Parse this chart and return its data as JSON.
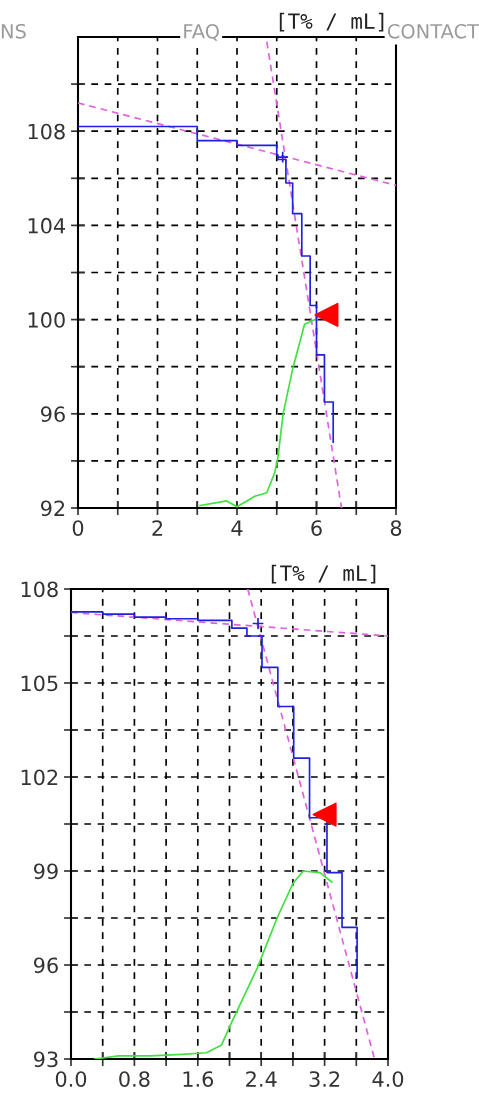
{
  "chart_data": [
    {
      "type": "line",
      "ylabel": "[T% / mL]",
      "annotations": [
        "NS",
        "FAQ",
        "CONTACT"
      ],
      "xlim": [
        0,
        8
      ],
      "ylim": [
        92,
        112
      ],
      "xticks": [
        0,
        {
          "value": 1,
          "label": null
        },
        2,
        {
          "value": 3,
          "label": null
        },
        4,
        {
          "value": 5,
          "label": null
        },
        6,
        {
          "value": 7,
          "label": null
        },
        8
      ],
      "yticks": [
        92,
        {
          "value": 94,
          "label": null
        },
        96,
        {
          "value": 98,
          "label": null
        },
        100,
        {
          "value": 102,
          "label": null
        },
        104,
        {
          "value": 106,
          "label": null
        },
        108,
        {
          "value": 110,
          "label": null
        }
      ],
      "grid": true,
      "series": [
        {
          "type": "line",
          "line_style": "dashed",
          "color": "#e060e0",
          "x": [
            0,
            8
          ],
          "values": [
            109.2,
            105.7
          ]
        },
        {
          "type": "line",
          "line_style": "dashed",
          "color": "#e060e0",
          "x": [
            4.75,
            6.63
          ],
          "values": [
            111.8,
            92
          ]
        },
        {
          "type": "line",
          "line_style": "solid",
          "color": "#40e040",
          "x": [
            3.07,
            3.74,
            4.0,
            4.45,
            4.75,
            4.95,
            5.03,
            5.16,
            5.4,
            5.7,
            5.96
          ],
          "values": [
            92.1,
            92.3,
            92.05,
            92.5,
            92.65,
            93.5,
            94.15,
            96,
            97.9,
            99.8,
            100
          ]
        },
        {
          "type": "step",
          "line_style": "solid",
          "color": "#2020e0",
          "x": [
            0,
            3,
            4,
            5,
            5.03,
            5.23,
            5.4,
            5.63,
            5.84,
            6.0,
            6.2,
            6.42
          ],
          "values": [
            108.2,
            107.6,
            107.4,
            107.0,
            106.8,
            105.8,
            104.5,
            102.7,
            100.6,
            98.5,
            96.5,
            94.8
          ]
        },
        {
          "type": "scatter",
          "marker": "cross",
          "color": "#2020e0",
          "x": [
            5.15
          ],
          "values": [
            106.9
          ]
        },
        {
          "type": "scatter",
          "marker": "triangle",
          "color": "#ff0000",
          "x": [
            6.25
          ],
          "values": [
            100.2
          ]
        }
      ]
    },
    {
      "type": "line",
      "ylabel": "[T% / mL]",
      "xlim": [
        0,
        4.0
      ],
      "ylim": [
        93,
        108
      ],
      "xticks": [
        {
          "value": 0,
          "label": "0.0"
        },
        {
          "value": 0.4,
          "label": null
        },
        {
          "value": 0.8,
          "label": "0.8"
        },
        {
          "value": 1.2,
          "label": null
        },
        {
          "value": 1.6,
          "label": "1.6"
        },
        {
          "value": 2.0,
          "label": null
        },
        {
          "value": 2.4,
          "label": "2.4"
        },
        {
          "value": 2.8,
          "label": null
        },
        {
          "value": 3.2,
          "label": "3.2"
        },
        {
          "value": 3.6,
          "label": null
        },
        {
          "value": 4.0,
          "label": "4.0"
        }
      ],
      "yticks": [
        93,
        {
          "value": 94.5,
          "label": null
        },
        96,
        {
          "value": 97.5,
          "label": null
        },
        99,
        {
          "value": 100.5,
          "label": null
        },
        102,
        {
          "value": 103.5,
          "label": null
        },
        105,
        {
          "value": 106.5,
          "label": null
        },
        108
      ],
      "grid": true,
      "series": [
        {
          "type": "line",
          "line_style": "dashed",
          "color": "#e060e0",
          "x": [
            0,
            4.0
          ],
          "values": [
            107.25,
            106.5
          ]
        },
        {
          "type": "line",
          "line_style": "dashed",
          "color": "#e060e0",
          "x": [
            2.23,
            3.83
          ],
          "values": [
            108,
            93
          ]
        },
        {
          "type": "line",
          "line_style": "solid",
          "color": "#40e040",
          "x": [
            0.3,
            0.6,
            1.0,
            1.4,
            1.71,
            1.9,
            2.04,
            2.35,
            2.6,
            2.8,
            2.93,
            3.14,
            3.29
          ],
          "values": [
            93.0,
            93.1,
            93.1,
            93.15,
            93.2,
            93.45,
            94.24,
            95.9,
            97.5,
            98.6,
            99.0,
            98.95,
            98.65
          ]
        },
        {
          "type": "step",
          "line_style": "solid",
          "color": "#2020e0",
          "x": [
            0,
            0.4,
            0.8,
            1.2,
            1.6,
            2.03,
            2.22,
            2.41,
            2.61,
            2.81,
            3.01,
            3.23,
            3.42,
            3.61
          ],
          "values": [
            107.27,
            107.2,
            107.1,
            107.05,
            107.0,
            106.75,
            106.5,
            105.5,
            104.25,
            102.6,
            100.7,
            98.95,
            97.2,
            95.6
          ]
        },
        {
          "type": "scatter",
          "marker": "cross",
          "color": "#2020e0",
          "x": [
            2.36
          ],
          "values": [
            106.9
          ]
        },
        {
          "type": "scatter",
          "marker": "triangle",
          "color": "#ff0000",
          "x": [
            3.2
          ],
          "values": [
            100.8
          ]
        }
      ]
    }
  ]
}
